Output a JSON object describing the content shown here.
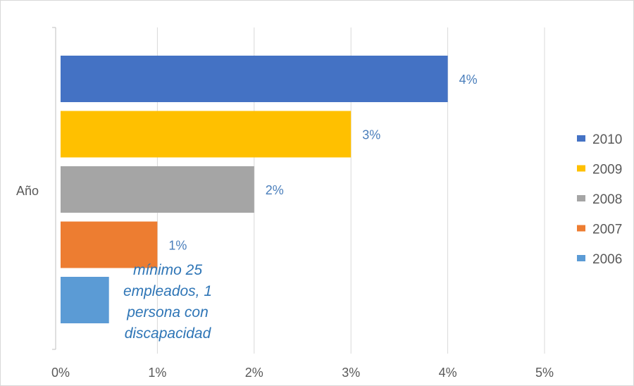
{
  "chart_data": {
    "type": "bar",
    "orientation": "horizontal",
    "category_label": "Año",
    "series": [
      {
        "name": "2010",
        "value": 4,
        "color": "#4472c4",
        "label": "4%"
      },
      {
        "name": "2009",
        "value": 3,
        "color": "#ffc000",
        "label": "3%"
      },
      {
        "name": "2008",
        "value": 2,
        "color": "#a5a5a5",
        "label": "2%"
      },
      {
        "name": "2007",
        "value": 1,
        "color": "#ed7d31",
        "label": "1%"
      },
      {
        "name": "2006",
        "value": 0.5,
        "color": "#5b9bd5",
        "label": ""
      }
    ],
    "xlim": [
      0,
      5
    ],
    "xticks": [
      "0%",
      "1%",
      "2%",
      "3%",
      "4%",
      "5%"
    ],
    "grid": true,
    "legend": "right",
    "annotation": [
      "mínimo 25",
      "empleados, 1",
      "persona con",
      "discapacidad"
    ],
    "annotation_color": "#2e75b6"
  }
}
